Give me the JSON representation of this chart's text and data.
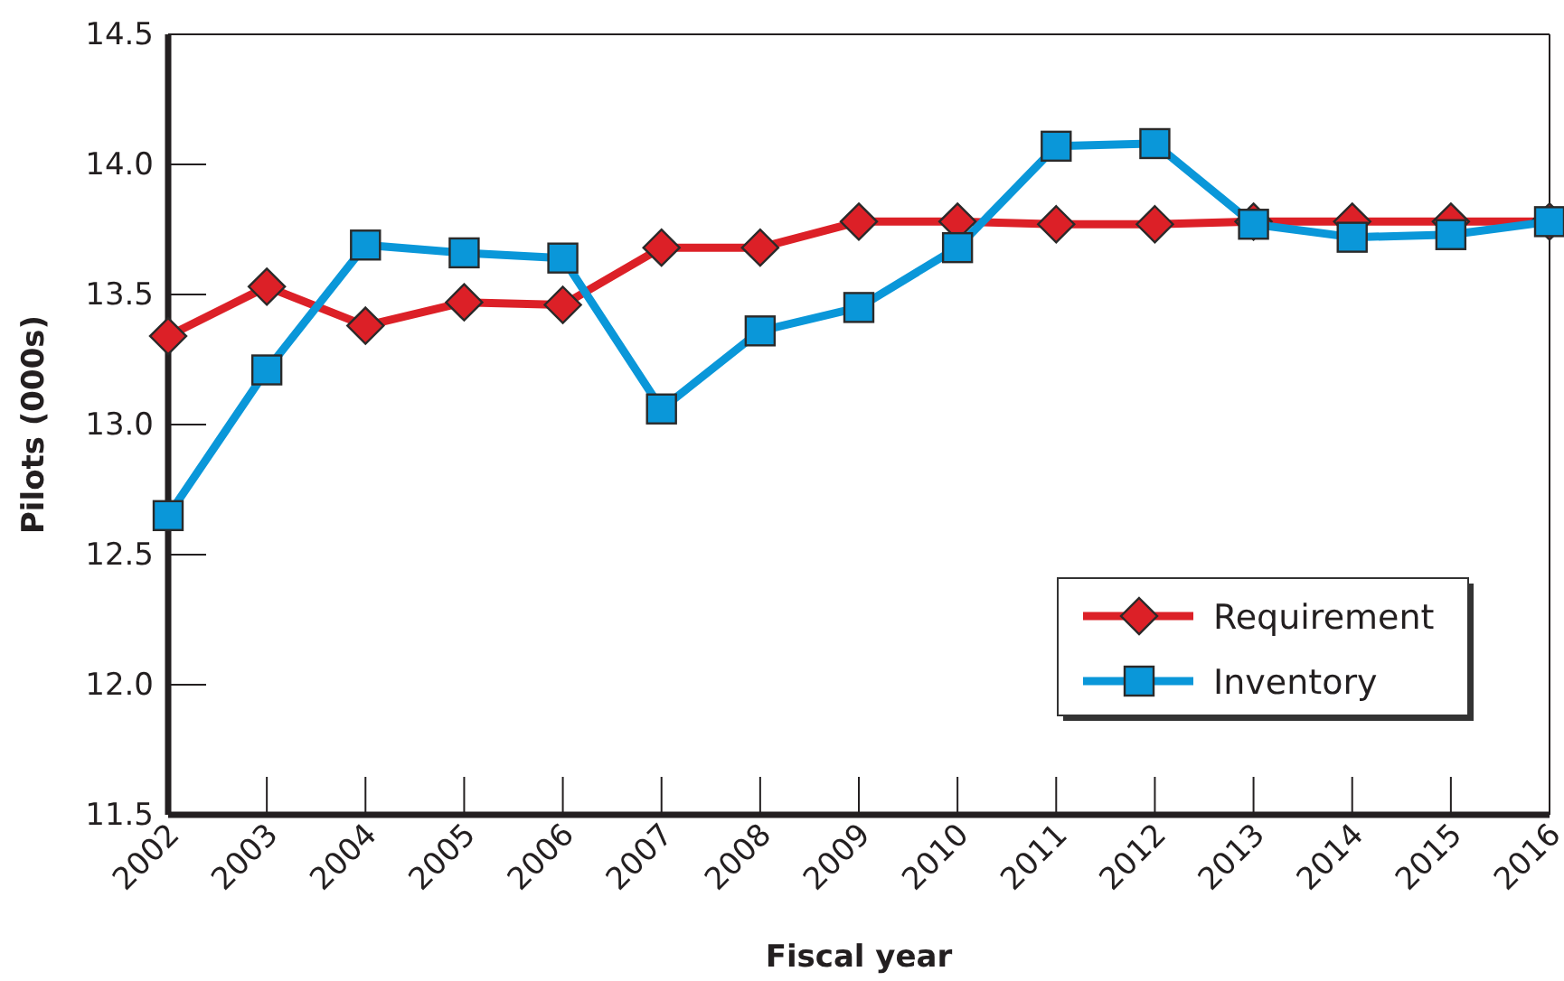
{
  "chart_data": {
    "type": "line",
    "xlabel": "Fiscal year",
    "ylabel": "Pilots (000s)",
    "categories": [
      "2002",
      "2003",
      "2004",
      "2005",
      "2006",
      "2007",
      "2008",
      "2009",
      "2010",
      "2011",
      "2012",
      "2013",
      "2014",
      "2015",
      "2016"
    ],
    "series": [
      {
        "name": "Requirement",
        "color": "#dc2027",
        "marker": "diamond",
        "values": [
          13.34,
          13.53,
          13.38,
          13.47,
          13.46,
          13.68,
          13.68,
          13.78,
          13.78,
          13.77,
          13.77,
          13.78,
          13.78,
          13.78,
          13.78
        ]
      },
      {
        "name": "Inventory",
        "color": "#0a97d9",
        "marker": "square",
        "values": [
          12.65,
          13.21,
          13.69,
          13.66,
          13.64,
          13.06,
          13.36,
          13.45,
          13.68,
          14.07,
          14.08,
          13.77,
          13.72,
          13.73,
          13.78
        ]
      }
    ],
    "ylim": [
      11.5,
      14.5
    ],
    "yticks": [
      11.5,
      {
        "value": 12,
        "label": "12.0"
      },
      12.5,
      {
        "value": 13,
        "label": "13.0"
      },
      13.5,
      {
        "value": 14,
        "label": "14.0"
      },
      14.5
    ],
    "legend": "bottom right",
    "line_style": "solid"
  }
}
